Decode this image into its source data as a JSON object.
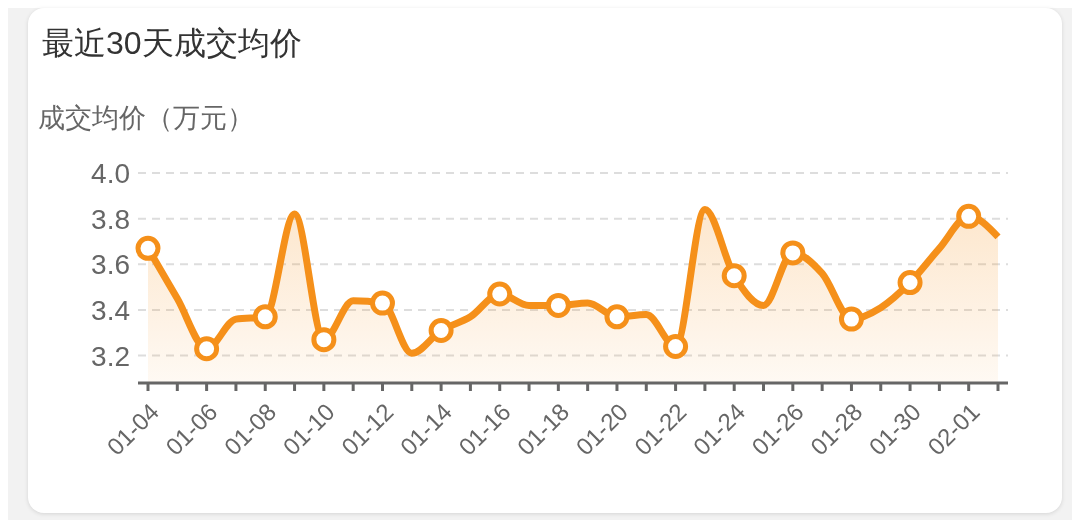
{
  "chart_data": {
    "type": "area",
    "title": "最近30天成交均价",
    "ylabel": "成交均价（万元）",
    "categories": [
      "01-04",
      null,
      "01-06",
      null,
      "01-08",
      null,
      "01-10",
      null,
      "01-12",
      null,
      "01-14",
      null,
      "01-16",
      null,
      "01-18",
      null,
      "01-20",
      null,
      "01-22",
      null,
      "01-24",
      null,
      "01-26",
      null,
      "01-28",
      null,
      "01-30",
      null,
      "02-01",
      null
    ],
    "series": [
      {
        "color": "#f5901a",
        "values": [
          3.67,
          3.45,
          3.23,
          3.36,
          3.37,
          3.82,
          3.27,
          3.44,
          3.43,
          3.21,
          3.31,
          3.37,
          3.47,
          3.42,
          3.42,
          3.43,
          3.37,
          3.38,
          3.24,
          3.84,
          3.55,
          3.42,
          3.65,
          3.56,
          3.36,
          3.41,
          3.52,
          3.67,
          3.81,
          3.72
        ]
      }
    ],
    "ylim": [
      3.08,
      4.0
    ],
    "yticks": [
      {
        "value": 3.2,
        "label": "3.2"
      },
      {
        "value": 3.4,
        "label": "3.4"
      },
      {
        "value": 3.6,
        "label": "3.6"
      },
      {
        "value": 3.8,
        "label": "3.8"
      },
      {
        "value": 4.0,
        "label": "4.0"
      }
    ],
    "grid": "y",
    "marker": "circle",
    "line_style": "solid"
  }
}
